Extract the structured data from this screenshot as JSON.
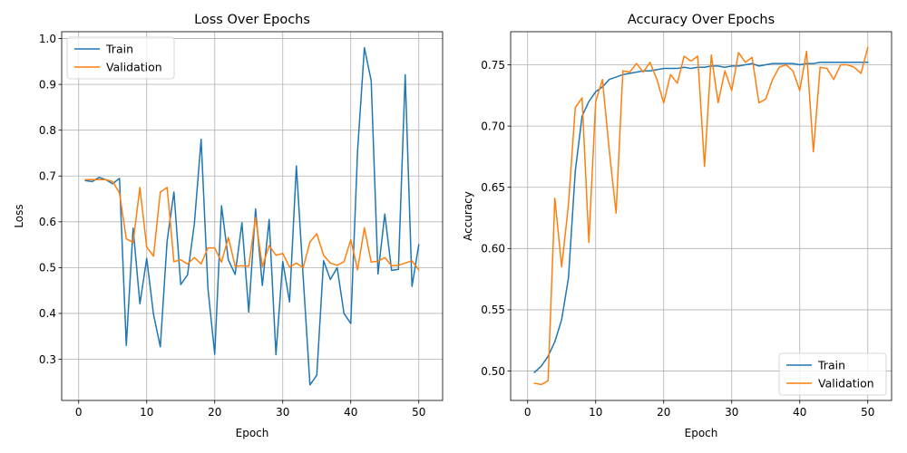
{
  "chart_data": [
    {
      "type": "line",
      "title": "Loss Over Epochs",
      "xlabel": "Epoch",
      "ylabel": "Loss",
      "xlim": [
        -2.5,
        53.5
      ],
      "ylim": [
        0.21,
        1.015
      ],
      "xticks": [
        0,
        10,
        20,
        30,
        40,
        50
      ],
      "xtick_labels": [
        "0",
        "10",
        "20",
        "30",
        "40",
        "50"
      ],
      "yticks": [
        0.3,
        0.4,
        0.5,
        0.6,
        0.7,
        0.8,
        0.9,
        1.0
      ],
      "ytick_labels": [
        "0.3",
        "0.4",
        "0.5",
        "0.6",
        "0.7",
        "0.8",
        "0.9",
        "1.0"
      ],
      "grid": true,
      "legend": "top-left",
      "x": [
        1,
        2,
        3,
        4,
        5,
        6,
        7,
        8,
        9,
        10,
        11,
        12,
        13,
        14,
        15,
        16,
        17,
        18,
        19,
        20,
        21,
        22,
        23,
        24,
        25,
        26,
        27,
        28,
        29,
        30,
        31,
        32,
        33,
        34,
        35,
        36,
        37,
        38,
        39,
        40,
        41,
        42,
        43,
        44,
        45,
        46,
        47,
        48,
        49,
        50
      ],
      "series": [
        {
          "name": "Train",
          "color": "#1f77b4",
          "values": [
            0.69,
            0.688,
            0.697,
            0.692,
            0.683,
            0.695,
            0.33,
            0.586,
            0.421,
            0.52,
            0.398,
            0.327,
            0.558,
            0.665,
            0.463,
            0.484,
            0.595,
            0.78,
            0.455,
            0.311,
            0.635,
            0.517,
            0.485,
            0.598,
            0.403,
            0.628,
            0.461,
            0.605,
            0.31,
            0.513,
            0.425,
            0.722,
            0.48,
            0.244,
            0.265,
            0.515,
            0.474,
            0.5,
            0.4,
            0.378,
            0.755,
            0.98,
            0.908,
            0.486,
            0.617,
            0.494,
            0.496,
            0.921,
            0.459,
            0.55
          ]
        },
        {
          "name": "Validation",
          "color": "#ff7f0e",
          "values": [
            0.692,
            0.692,
            0.692,
            0.692,
            0.688,
            0.663,
            0.563,
            0.555,
            0.675,
            0.545,
            0.525,
            0.665,
            0.675,
            0.513,
            0.517,
            0.508,
            0.522,
            0.508,
            0.543,
            0.543,
            0.512,
            0.566,
            0.503,
            0.504,
            0.503,
            0.61,
            0.502,
            0.548,
            0.527,
            0.531,
            0.501,
            0.51,
            0.5,
            0.556,
            0.574,
            0.527,
            0.51,
            0.505,
            0.513,
            0.561,
            0.495,
            0.587,
            0.512,
            0.514,
            0.522,
            0.504,
            0.505,
            0.51,
            0.515,
            0.495
          ]
        }
      ]
    },
    {
      "type": "line",
      "title": "Accuracy Over Epochs",
      "xlabel": "Epoch",
      "ylabel": "Accuracy",
      "xlim": [
        -2.5,
        53.5
      ],
      "ylim": [
        0.476,
        0.777
      ],
      "xticks": [
        0,
        10,
        20,
        30,
        40,
        50
      ],
      "xtick_labels": [
        "0",
        "10",
        "20",
        "30",
        "40",
        "50"
      ],
      "yticks": [
        0.5,
        0.55,
        0.6,
        0.65,
        0.7,
        0.75
      ],
      "ytick_labels": [
        "0.50",
        "0.55",
        "0.60",
        "0.65",
        "0.70",
        "0.75"
      ],
      "grid": true,
      "legend": "bottom-right",
      "x": [
        1,
        2,
        3,
        4,
        5,
        6,
        7,
        8,
        9,
        10,
        11,
        12,
        13,
        14,
        15,
        16,
        17,
        18,
        19,
        20,
        21,
        22,
        23,
        24,
        25,
        26,
        27,
        28,
        29,
        30,
        31,
        32,
        33,
        34,
        35,
        36,
        37,
        38,
        39,
        40,
        41,
        42,
        43,
        44,
        45,
        46,
        47,
        48,
        49,
        50
      ],
      "series": [
        {
          "name": "Train",
          "color": "#1f77b4",
          "values": [
            0.499,
            0.504,
            0.512,
            0.524,
            0.542,
            0.576,
            0.663,
            0.708,
            0.72,
            0.728,
            0.732,
            0.738,
            0.74,
            0.742,
            0.743,
            0.744,
            0.745,
            0.745,
            0.746,
            0.747,
            0.747,
            0.747,
            0.748,
            0.747,
            0.748,
            0.748,
            0.749,
            0.749,
            0.748,
            0.749,
            0.749,
            0.75,
            0.751,
            0.749,
            0.75,
            0.751,
            0.751,
            0.751,
            0.751,
            0.75,
            0.751,
            0.751,
            0.752,
            0.752,
            0.752,
            0.752,
            0.752,
            0.752,
            0.752,
            0.752
          ]
        },
        {
          "name": "Validation",
          "color": "#ff7f0e",
          "values": [
            0.49,
            0.489,
            0.492,
            0.641,
            0.585,
            0.636,
            0.715,
            0.723,
            0.605,
            0.72,
            0.738,
            0.68,
            0.629,
            0.745,
            0.744,
            0.751,
            0.744,
            0.752,
            0.738,
            0.719,
            0.742,
            0.735,
            0.757,
            0.753,
            0.757,
            0.667,
            0.758,
            0.719,
            0.745,
            0.729,
            0.76,
            0.752,
            0.756,
            0.719,
            0.722,
            0.738,
            0.748,
            0.75,
            0.745,
            0.729,
            0.761,
            0.679,
            0.748,
            0.747,
            0.738,
            0.75,
            0.75,
            0.748,
            0.743,
            0.764
          ]
        }
      ]
    }
  ]
}
